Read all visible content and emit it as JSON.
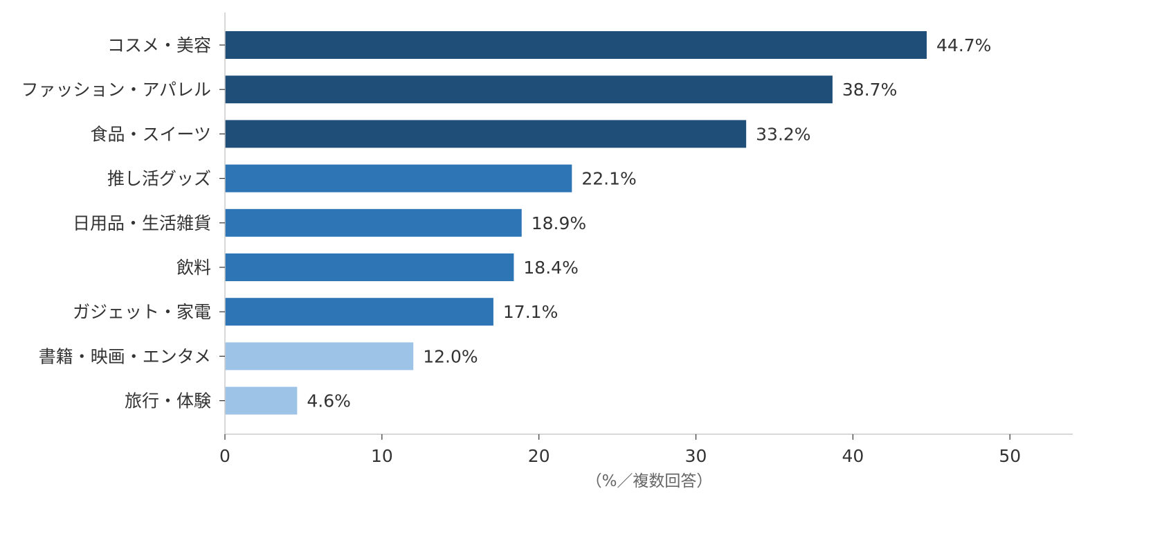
{
  "chart_data": {
    "type": "bar",
    "orientation": "horizontal",
    "categories": [
      "コスメ・美容",
      "ファッション・アパレル",
      "食品・スイーツ",
      "推し活グッズ",
      "日用品・生活雑貨",
      "飲料",
      "ガジェット・家電",
      "書籍・映画・エンタメ",
      "旅行・体験"
    ],
    "values": [
      44.7,
      38.7,
      33.2,
      22.1,
      18.9,
      18.4,
      17.1,
      12.0,
      4.6
    ],
    "value_labels": [
      "44.7%",
      "38.7%",
      "33.2%",
      "22.1%",
      "18.9%",
      "18.4%",
      "17.1%",
      "12.0%",
      "4.6%"
    ],
    "bar_colors": [
      "#1f4e79",
      "#1f4e79",
      "#1f4e79",
      "#2e75b6",
      "#2e75b6",
      "#2e75b6",
      "#2e75b6",
      "#9dc3e6",
      "#9dc3e6"
    ],
    "xlabel": "（%／複数回答）",
    "ylabel": "",
    "title": "",
    "xlim": [
      0,
      54
    ],
    "xticks": [
      0,
      10,
      20,
      30,
      40,
      50
    ],
    "xtick_labels": [
      "0",
      "10",
      "20",
      "30",
      "40",
      "50"
    ],
    "grid": false,
    "legend": "none",
    "axis_color": "#cccccc",
    "text_color": "#333333"
  }
}
